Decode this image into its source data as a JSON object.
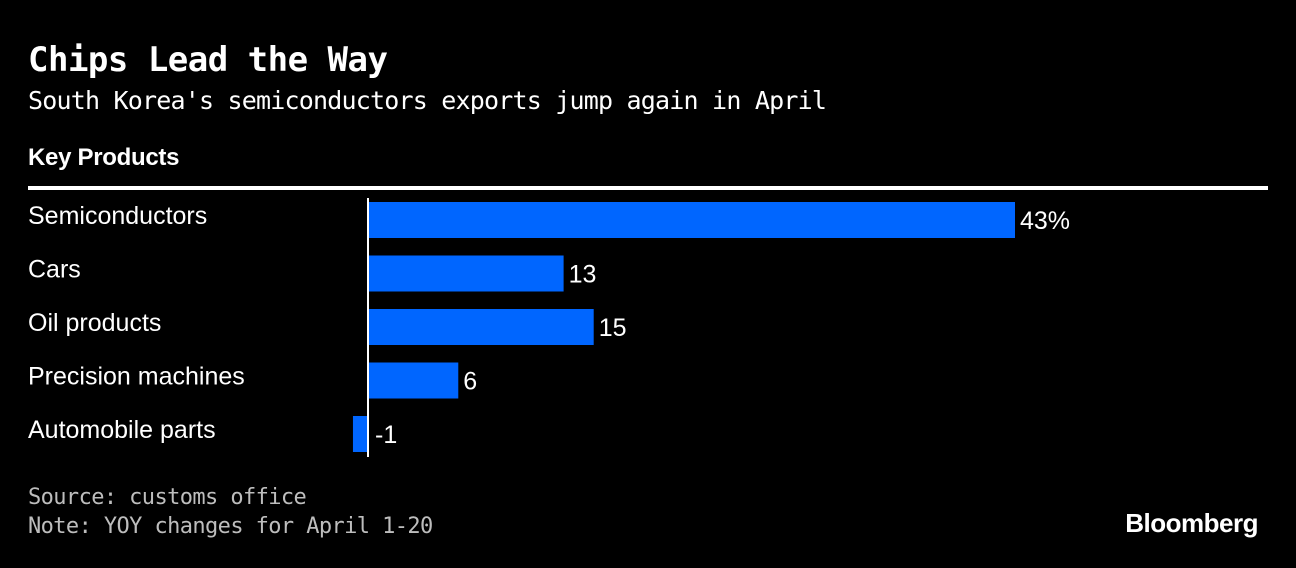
{
  "header": {
    "title": "Chips Lead the Way",
    "subtitle": "South Korea's semiconductors exports jump again in April",
    "column_header": "Key Products"
  },
  "footer": {
    "source": "Source: customs office",
    "note": "Note: YOY changes for April 1-20",
    "brand": "Bloomberg"
  },
  "colors": {
    "background": "#000000",
    "bar": "#0066ff",
    "text": "#ffffff"
  },
  "chart_data": {
    "type": "bar",
    "orientation": "horizontal",
    "categories": [
      "Semiconductors",
      "Cars",
      "Oil products",
      "Precision machines",
      "Automobile parts"
    ],
    "values": [
      43,
      13,
      15,
      6,
      -1
    ],
    "data_labels": [
      "43%",
      "13",
      "15",
      "6",
      "-1"
    ],
    "title": "Chips Lead the Way",
    "subtitle": "South Korea's semiconductors exports jump again in April",
    "xlabel": "",
    "ylabel": "",
    "grid": false,
    "legend": "none"
  }
}
